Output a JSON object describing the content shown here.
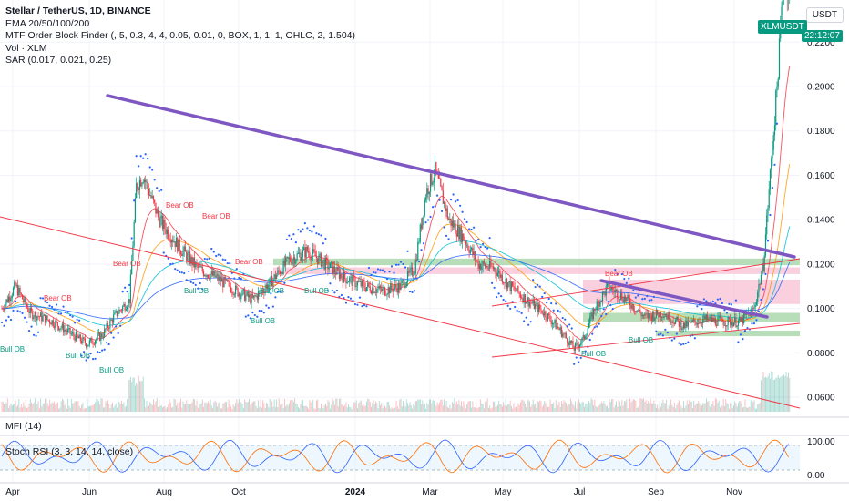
{
  "legend": {
    "symbol": "Stellar / TetherUS, 1D, BINANCE",
    "ema": "EMA 20/50/100/200",
    "mtf": "MTF Order Block Finder (, 5, 0.3, 4, 4, 0.05, 0.01, 0, BOX, 1, 1, 1, OHLC, 2, 1.504)",
    "vol": "Vol · XLM",
    "sar": "SAR (0.017, 0.021, 0.25)"
  },
  "currency": "USDT",
  "ticker": {
    "label": "XLMUSDT",
    "countdown": "22:12:07"
  },
  "mfi_label": "MFI (14)",
  "stoch_label": "Stoch RSI (3, 3, 14, 14, close)",
  "stoch_ticks": [
    "100.00",
    "0.00"
  ],
  "colors": {
    "up": "#089981",
    "down": "#f23645",
    "trendline": "#7e57c2",
    "channel": "#f23645",
    "sar": "#2962ff",
    "ob_bull": "#a5d6a7",
    "ob_bear": "#f8bbd0"
  },
  "chart_data": {
    "type": "candlestick",
    "x_axis": {
      "ticks": [
        "Apr",
        "Jun",
        "Aug",
        "Oct",
        "2024",
        "Mar",
        "May",
        "Jul",
        "Sep",
        "Nov"
      ]
    },
    "y_axis": {
      "ticks": [
        "0.0600",
        "0.0800",
        "0.1000",
        "0.1200",
        "0.1400",
        "0.1600",
        "0.1800",
        "0.2000",
        "0.2200"
      ],
      "ylim": [
        0.051,
        0.239
      ]
    },
    "anchors": [
      {
        "t": 0,
        "v": 0.1
      },
      {
        "t": 12,
        "v": 0.11
      },
      {
        "t": 25,
        "v": 0.098
      },
      {
        "t": 45,
        "v": 0.094
      },
      {
        "t": 62,
        "v": 0.088
      },
      {
        "t": 75,
        "v": 0.084
      },
      {
        "t": 88,
        "v": 0.088
      },
      {
        "t": 98,
        "v": 0.096
      },
      {
        "t": 112,
        "v": 0.104
      },
      {
        "t": 118,
        "v": 0.155
      },
      {
        "t": 124,
        "v": 0.16
      },
      {
        "t": 138,
        "v": 0.14
      },
      {
        "t": 155,
        "v": 0.128
      },
      {
        "t": 172,
        "v": 0.118
      },
      {
        "t": 188,
        "v": 0.114
      },
      {
        "t": 205,
        "v": 0.108
      },
      {
        "t": 220,
        "v": 0.104
      },
      {
        "t": 236,
        "v": 0.112
      },
      {
        "t": 252,
        "v": 0.122
      },
      {
        "t": 268,
        "v": 0.126
      },
      {
        "t": 284,
        "v": 0.12
      },
      {
        "t": 300,
        "v": 0.114
      },
      {
        "t": 318,
        "v": 0.11
      },
      {
        "t": 334,
        "v": 0.108
      },
      {
        "t": 350,
        "v": 0.11
      },
      {
        "t": 362,
        "v": 0.118
      },
      {
        "t": 372,
        "v": 0.152
      },
      {
        "t": 380,
        "v": 0.162
      },
      {
        "t": 392,
        "v": 0.14
      },
      {
        "t": 405,
        "v": 0.132
      },
      {
        "t": 418,
        "v": 0.12
      },
      {
        "t": 432,
        "v": 0.118
      },
      {
        "t": 446,
        "v": 0.11
      },
      {
        "t": 460,
        "v": 0.104
      },
      {
        "t": 476,
        "v": 0.098
      },
      {
        "t": 490,
        "v": 0.09
      },
      {
        "t": 502,
        "v": 0.082
      },
      {
        "t": 510,
        "v": 0.086
      },
      {
        "t": 520,
        "v": 0.1
      },
      {
        "t": 532,
        "v": 0.11
      },
      {
        "t": 548,
        "v": 0.104
      },
      {
        "t": 564,
        "v": 0.096
      },
      {
        "t": 580,
        "v": 0.098
      },
      {
        "t": 598,
        "v": 0.092
      },
      {
        "t": 614,
        "v": 0.095
      },
      {
        "t": 634,
        "v": 0.094
      },
      {
        "t": 648,
        "v": 0.094
      },
      {
        "t": 660,
        "v": 0.1
      },
      {
        "t": 668,
        "v": 0.12
      },
      {
        "t": 674,
        "v": 0.16
      },
      {
        "t": 680,
        "v": 0.2
      },
      {
        "t": 686,
        "v": 0.25
      },
      {
        "t": 692,
        "v": 0.24
      }
    ],
    "total_bars": 692,
    "annotations": {
      "bear_ob": [
        "Bear OB",
        "Bear OB",
        "Bear OB",
        "Bear OB",
        "Bear OB",
        "Bear OB"
      ],
      "bull_ob": [
        "Bull OB",
        "Bull OB",
        "Bull OB",
        "Bull OB",
        "Bull OB",
        "Bull OB",
        "Bull OB",
        "Bull OB",
        "Bull OB"
      ]
    }
  }
}
